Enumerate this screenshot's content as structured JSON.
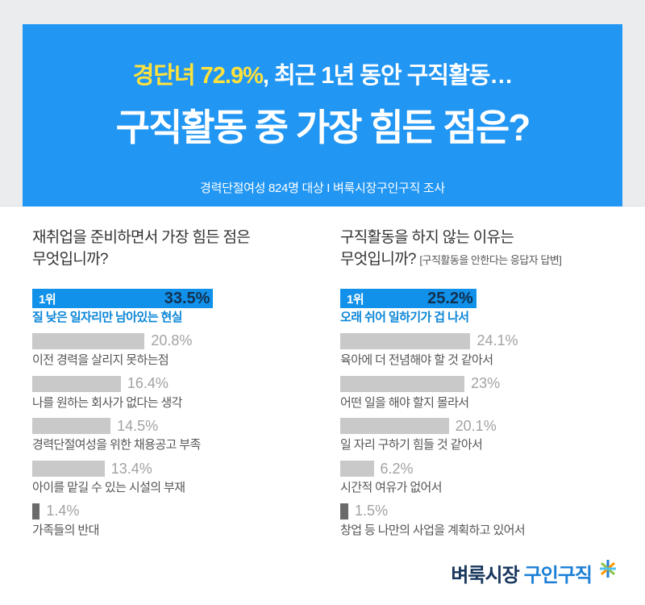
{
  "banner": {
    "headline_highlight": "경단녀 72.9%",
    "headline_rest": ", 최근 1년 동안 구직활동…",
    "title": "구직활동 중 가장 힘든 점은?",
    "subtitle": "경력단절여성  824명 대상  I  벼룩시장구인구직 조사",
    "bg_color": "#2196f3",
    "highlight_color": "#ffe23c"
  },
  "chart_data": [
    {
      "type": "bar",
      "orientation": "horizontal",
      "title": "재취업을 준비하면서 가장 힘든 점은 무엇입니까?",
      "title_line1": "재취업을 준비하면서 가장 힘든 점은",
      "title_line2": "무엇입니까?",
      "note": "",
      "rank_label": "1위",
      "categories": [
        "질 낮은 일자리만 남아있는 현실",
        "이전 경력을 살리지 못하는점",
        "나를 원하는 회사가 없다는 생각",
        "경력단절여성을 위한 채용공고 부족",
        "아이를 맡길 수 있는 시설의 부재",
        "가족들의 반대"
      ],
      "values": [
        33.5,
        20.8,
        16.4,
        14.5,
        13.4,
        1.4
      ],
      "value_labels": [
        "33.5%",
        "20.8%",
        "16.4%",
        "14.5%",
        "13.4%",
        "1.4%"
      ],
      "xlim": [
        0,
        35
      ],
      "highlight_color": "#1191ea",
      "bar_color": "#c9c9c9",
      "legend": "none",
      "grid": false
    },
    {
      "type": "bar",
      "orientation": "horizontal",
      "title": "구직활동을 하지 않는 이유는 무엇입니까? [구직활동을 안한다는 응답자 답변]",
      "title_line1": "구직활동을 하지 않는 이유는",
      "title_line2": "무엇입니까?",
      "note": "[구직활동을 안한다는 응답자 답변]",
      "rank_label": "1위",
      "categories": [
        "오래 쉬어 일하기가 겁 나서",
        "육아에 더 전념해야 할 것 같아서",
        "어떤 일을 해야 할지 몰라서",
        "일 자리 구하기 힘들 것 같아서",
        "시간적 여유가 없어서",
        "창업 등 나만의 사업을 계획하고 있어서"
      ],
      "values": [
        25.2,
        24.1,
        23,
        20.1,
        6.2,
        1.5
      ],
      "value_labels": [
        "25.2%",
        "24.1%",
        "23%",
        "20.1%",
        "6.2%",
        "1.5%"
      ],
      "xlim": [
        0,
        35
      ],
      "highlight_color": "#1191ea",
      "bar_color": "#c9c9c9",
      "legend": "none",
      "grid": false
    }
  ],
  "footer": {
    "brand": "벼룩시장",
    "brand_suffix": "구인구직"
  }
}
